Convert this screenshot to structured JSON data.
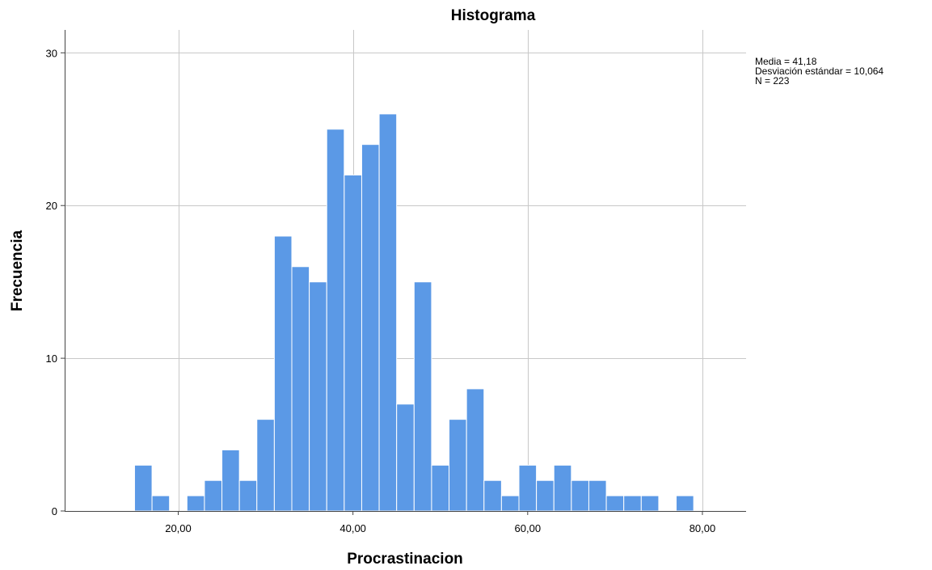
{
  "chart_data": {
    "type": "bar",
    "title": "Histograma",
    "xlabel": "Procrastinacion",
    "ylabel": "Frecuencia",
    "xlim": [
      7,
      85
    ],
    "ylim": [
      0,
      31.5
    ],
    "xticks": [
      20,
      40,
      60,
      80
    ],
    "xtick_labels": [
      "20,00",
      "40,00",
      "60,00",
      "80,00"
    ],
    "yticks": [
      0,
      10,
      20,
      30
    ],
    "ytick_labels": [
      "0",
      "10",
      "20",
      "30"
    ],
    "grid": true,
    "bar_color": "#5b99e6",
    "bin_edges": [
      15,
      17,
      19,
      21,
      23,
      25,
      27,
      29,
      31,
      33,
      35,
      37,
      39,
      41,
      43,
      45,
      47,
      49,
      51,
      53,
      55,
      57,
      59,
      61,
      63,
      65,
      67,
      69,
      71,
      73,
      75,
      77,
      79
    ],
    "values": [
      3,
      1,
      0,
      1,
      2,
      4,
      2,
      6,
      18,
      16,
      15,
      25,
      22,
      24,
      26,
      7,
      15,
      3,
      6,
      8,
      2,
      1,
      3,
      2,
      3,
      2,
      2,
      1,
      1,
      1,
      0,
      1
    ],
    "stats": {
      "mean": "Media = 41,18",
      "std": "Desviación estándar = 10,064",
      "n": "N = 223"
    }
  }
}
